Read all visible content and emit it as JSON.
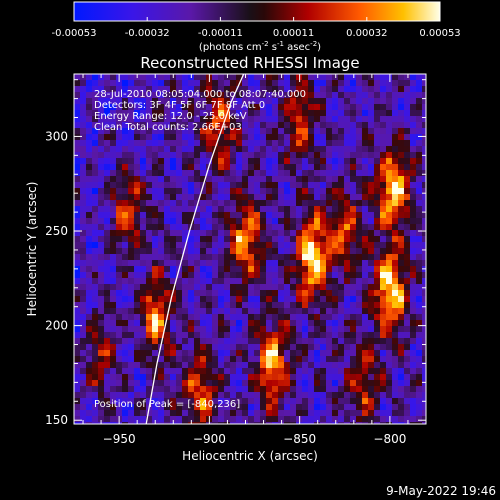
{
  "chart_data": {
    "type": "heatmap",
    "title": "Reconstructed RHESSI Image",
    "xlabel": "Heliocentric X (arcsec)",
    "ylabel": "Heliocentric Y (arcsec)",
    "xlim": [
      -975,
      -780
    ],
    "ylim": [
      148,
      333
    ],
    "x_ticks": [
      -950,
      -900,
      -850,
      -800
    ],
    "y_ticks": [
      150,
      200,
      250,
      300
    ],
    "colorbar": {
      "ticks": [
        "-0.00053",
        "-0.00032",
        "-0.00011",
        "0.00011",
        "0.00032",
        "0.00053"
      ],
      "range": [
        -0.00053,
        0.00053
      ],
      "unit_label": "(photons cm",
      "unit_sup1": "-2",
      "unit_mid": " s",
      "unit_sup2": "-1",
      "unit_end": " asec",
      "unit_sup3": "-2",
      "unit_close": ")"
    },
    "annotations": [
      "28-Jul-2010 08:05:04.000 to 08:07:40.000",
      "Detectors: 3F 4F 5F 6F 7F 8F  Att 0",
      "Energy Range: 12.0 - 25.0 keV",
      "Clean    Total counts: 2.66E+03"
    ],
    "peak_label": "Position of Peak = [-840,236]",
    "peaks": [
      {
        "x": -843,
        "y": 236,
        "amp": 1.0
      },
      {
        "x": -800,
        "y": 218,
        "amp": 0.95
      },
      {
        "x": -798,
        "y": 272,
        "amp": 0.9
      },
      {
        "x": -825,
        "y": 250,
        "amp": 0.6
      },
      {
        "x": -865,
        "y": 180,
        "amp": 0.8
      },
      {
        "x": -880,
        "y": 245,
        "amp": 0.75
      },
      {
        "x": -930,
        "y": 205,
        "amp": 0.7
      },
      {
        "x": -945,
        "y": 260,
        "amp": 0.65
      },
      {
        "x": -895,
        "y": 305,
        "amp": 0.6
      },
      {
        "x": -850,
        "y": 310,
        "amp": 0.55
      },
      {
        "x": -905,
        "y": 165,
        "amp": 0.6
      },
      {
        "x": -960,
        "y": 185,
        "amp": 0.5
      },
      {
        "x": -815,
        "y": 170,
        "amp": 0.5
      }
    ],
    "limb_curve": [
      [
        -935,
        148
      ],
      [
        -929,
        180
      ],
      [
        -921,
        215
      ],
      [
        -911,
        250
      ],
      [
        -900,
        285
      ],
      [
        -888,
        318
      ],
      [
        -881,
        333
      ]
    ]
  },
  "footer": {
    "date": "9-May-2022 19:46"
  }
}
